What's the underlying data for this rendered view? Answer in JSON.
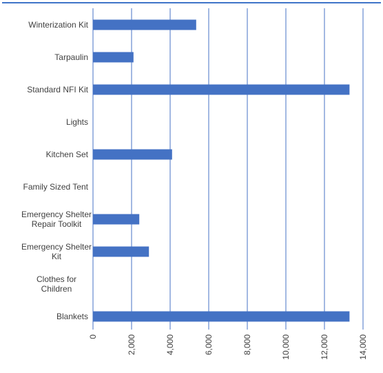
{
  "chart_data": {
    "type": "bar",
    "orientation": "horizontal",
    "categories": [
      "Winterization Kit",
      "Tarpaulin",
      "Standard NFI Kit",
      "Lights",
      "Kitchen Set",
      "Family Sized Tent",
      "Emergency Shelter Repair Toolkit",
      "Emergency Shelter Kit",
      "Clothes for Children",
      "Blankets"
    ],
    "values": [
      5350,
      2100,
      13300,
      0,
      4100,
      0,
      2400,
      2900,
      0,
      13300
    ],
    "xlim": [
      0,
      14000
    ],
    "ticks": [
      0,
      2000,
      4000,
      6000,
      8000,
      10000,
      12000,
      14000
    ],
    "tick_labels": [
      "0",
      "2,000",
      "4,000",
      "6,000",
      "8,000",
      "10,000",
      "12,000",
      "14,000"
    ],
    "title": "",
    "xlabel": "",
    "ylabel": "",
    "grid": "vertical",
    "legend": "none",
    "colors": {
      "bar": "#4472c4",
      "grid": "#4472c4",
      "top_border": "#3f74c8",
      "text": "#404040"
    }
  }
}
